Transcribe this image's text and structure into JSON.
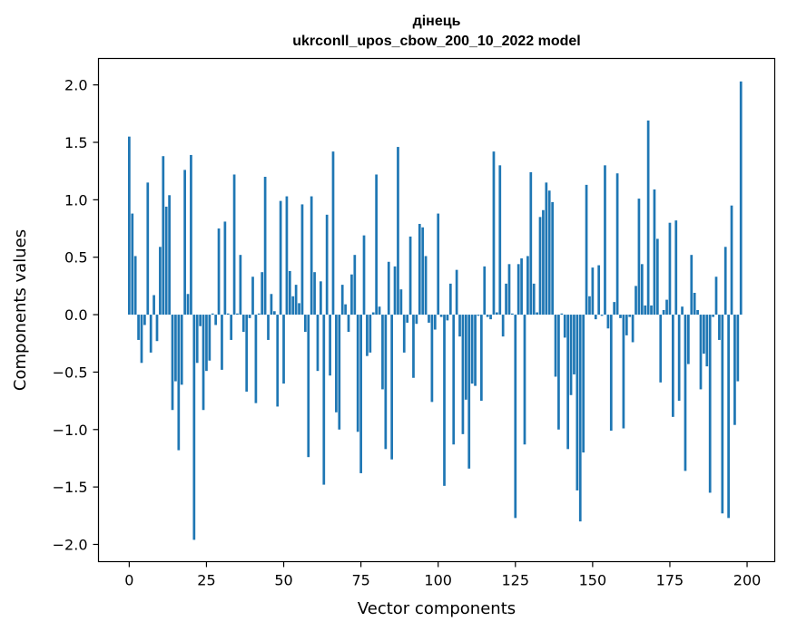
{
  "chart_data": {
    "type": "bar",
    "title": "дінець",
    "subtitle": "ukrconll_upos_cbow_200_10_2022 model",
    "xlabel": "Vector components",
    "ylabel": "Components values",
    "xlim": [
      -9.95,
      208.95
    ],
    "ylim": [
      -2.15,
      2.23
    ],
    "xticks": [
      0,
      25,
      50,
      75,
      100,
      125,
      150,
      175,
      200
    ],
    "yticks": [
      -2.0,
      -1.5,
      -1.0,
      -0.5,
      0.0,
      0.5,
      1.0,
      1.5,
      2.0
    ],
    "ytick_labels": [
      "−2.0",
      "−1.5",
      "−1.0",
      "−0.5",
      "0.0",
      "0.5",
      "1.0",
      "1.5",
      "2.0"
    ],
    "grid": false,
    "bar_color": "#1f77b4",
    "values": [
      1.55,
      0.88,
      0.51,
      -0.22,
      -0.42,
      -0.09,
      1.15,
      -0.33,
      0.17,
      -0.23,
      0.59,
      1.38,
      0.94,
      1.04,
      -0.83,
      -0.58,
      -1.18,
      -0.61,
      1.26,
      0.18,
      1.39,
      -1.96,
      -0.42,
      -0.1,
      -0.83,
      -0.49,
      -0.4,
      0.01,
      -0.09,
      0.75,
      -0.48,
      0.81,
      0.01,
      -0.22,
      1.22,
      0.01,
      0.52,
      -0.15,
      -0.67,
      -0.03,
      0.33,
      -0.77,
      0.01,
      0.37,
      1.2,
      -0.22,
      0.18,
      0.03,
      -0.8,
      0.99,
      -0.6,
      1.03,
      0.38,
      0.16,
      0.26,
      0.1,
      0.96,
      -0.15,
      -1.24,
      1.03,
      0.37,
      -0.49,
      0.29,
      -1.48,
      0.87,
      -0.53,
      1.42,
      -0.85,
      -1.0,
      0.26,
      0.09,
      -0.15,
      0.35,
      0.52,
      -1.02,
      -1.38,
      0.69,
      -0.36,
      -0.33,
      0.02,
      1.22,
      0.07,
      -0.65,
      -1.17,
      0.46,
      -1.26,
      0.42,
      1.46,
      0.22,
      -0.33,
      -0.07,
      0.68,
      -0.55,
      -0.08,
      0.79,
      0.76,
      0.51,
      -0.07,
      -0.76,
      -0.13,
      0.88,
      -0.02,
      -1.49,
      -0.05,
      0.27,
      -1.13,
      0.39,
      -0.19,
      -1.04,
      -0.74,
      -1.34,
      -0.6,
      -0.62,
      -0.01,
      -0.75,
      0.42,
      -0.02,
      -0.04,
      1.42,
      0.02,
      1.3,
      -0.19,
      0.27,
      0.44,
      0.01,
      -1.77,
      0.44,
      0.49,
      -1.13,
      0.51,
      1.24,
      0.27,
      0.02,
      0.85,
      0.91,
      1.15,
      1.08,
      0.98,
      -0.54,
      -1.0,
      0.01,
      -0.2,
      -1.17,
      -0.7,
      -0.52,
      -1.53,
      -1.8,
      -1.2,
      1.13,
      0.16,
      0.41,
      -0.04,
      0.43,
      -0.01,
      1.3,
      -0.12,
      -1.01,
      0.11,
      1.23,
      -0.03,
      -0.99,
      -0.18,
      -0.02,
      -0.24,
      0.25,
      1.01,
      0.44,
      0.08,
      1.69,
      0.08,
      1.09,
      0.66,
      -0.59,
      0.04,
      0.13,
      0.8,
      -0.89,
      0.82,
      -0.75,
      0.07,
      -1.36,
      -0.43,
      0.52,
      0.19,
      0.04,
      -0.65,
      -0.34,
      -0.45,
      -1.55,
      -0.02,
      0.33,
      -0.22,
      -1.73,
      0.59,
      -1.77,
      0.95,
      -0.96,
      -0.58,
      2.03
    ]
  }
}
